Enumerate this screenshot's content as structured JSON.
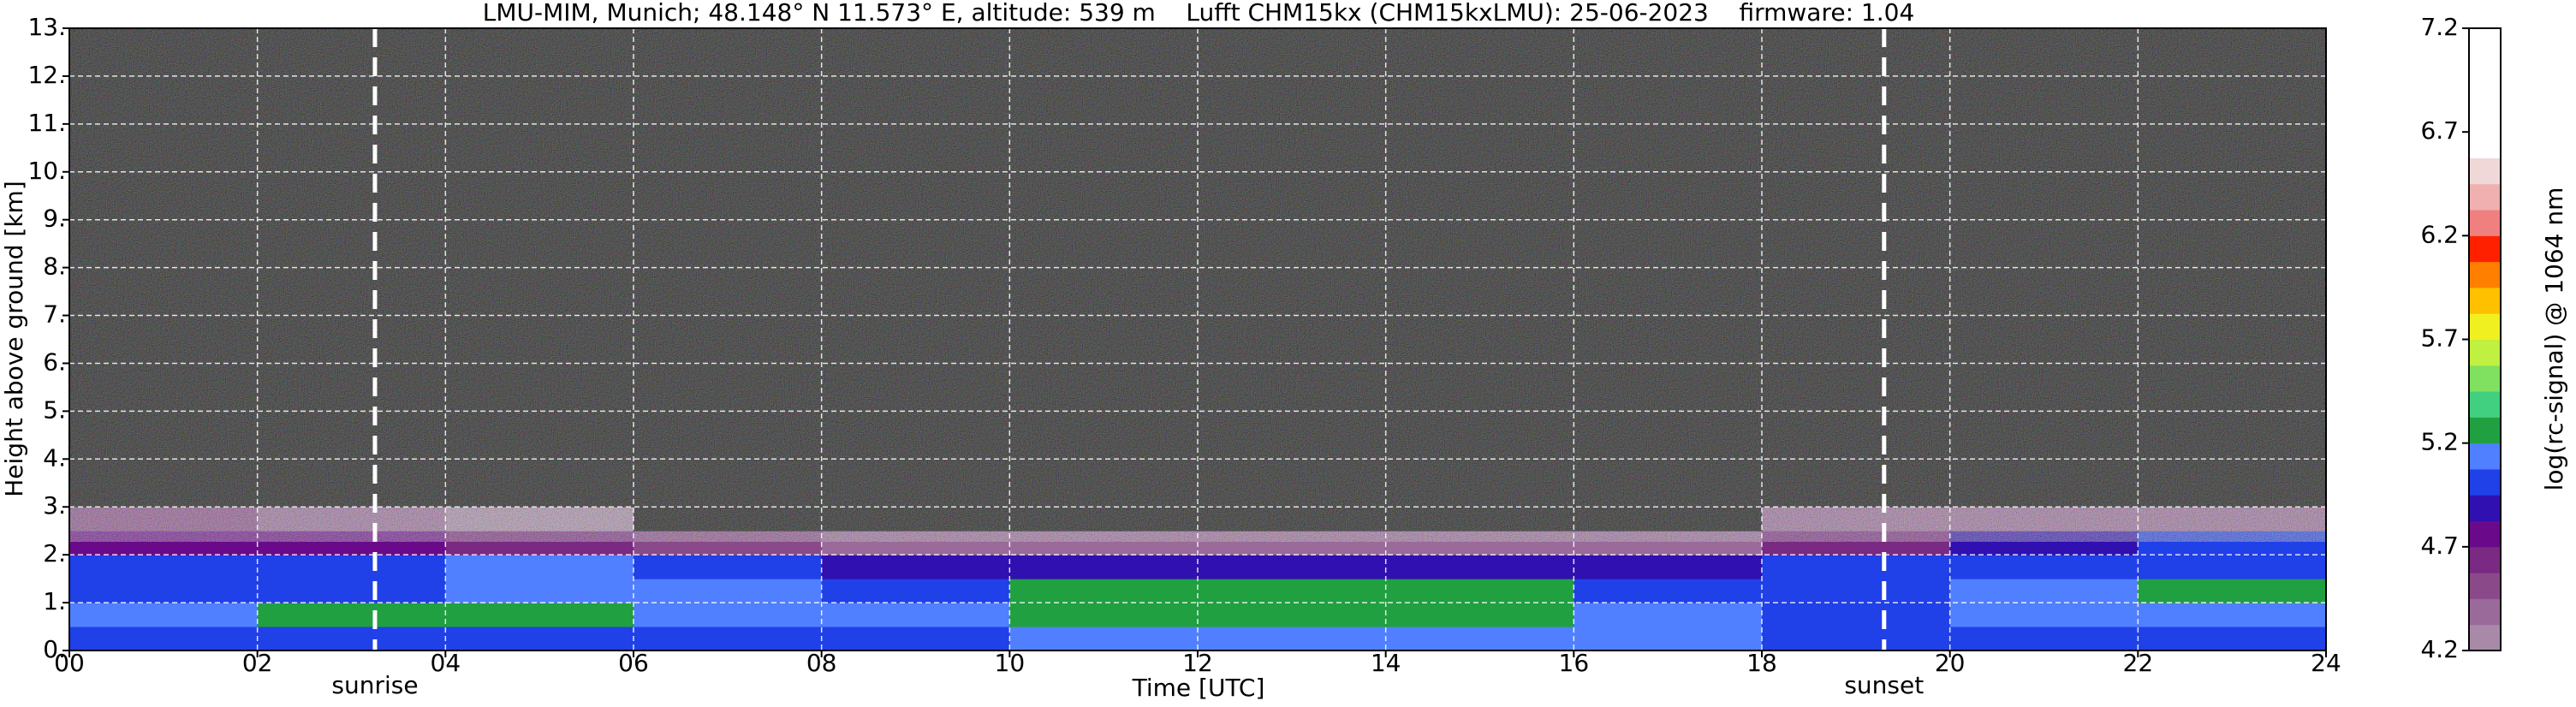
{
  "chart_data": {
    "type": "heatmap",
    "title": "LMU-MIM, Munich; 48.148° N 11.573° E, altitude: 539 m    Lufft CHM15kx (CHM15kxLMU): 25-06-2023    firmware: 1.04",
    "xlabel": "Time [UTC]",
    "ylabel": "Height above ground [km]",
    "colorbar_label": "log(rc-signal) @ 1064 nm",
    "xlim": [
      0,
      24
    ],
    "ylim": [
      0,
      13
    ],
    "xticks": [
      {
        "value": 0,
        "label": "00"
      },
      {
        "value": 2,
        "label": "02"
      },
      {
        "value": 4,
        "label": "04"
      },
      {
        "value": 6,
        "label": "06"
      },
      {
        "value": 8,
        "label": "08"
      },
      {
        "value": 10,
        "label": "10"
      },
      {
        "value": 12,
        "label": "12"
      },
      {
        "value": 14,
        "label": "14"
      },
      {
        "value": 16,
        "label": "16"
      },
      {
        "value": 18,
        "label": "18"
      },
      {
        "value": 20,
        "label": "20"
      },
      {
        "value": 22,
        "label": "22"
      },
      {
        "value": 24,
        "label": "24"
      }
    ],
    "yticks": [
      {
        "value": 0,
        "label": "0."
      },
      {
        "value": 1,
        "label": "1."
      },
      {
        "value": 2,
        "label": "2."
      },
      {
        "value": 3,
        "label": "3."
      },
      {
        "value": 4,
        "label": "4."
      },
      {
        "value": 5,
        "label": "5."
      },
      {
        "value": 6,
        "label": "6."
      },
      {
        "value": 7,
        "label": "7."
      },
      {
        "value": 8,
        "label": "8."
      },
      {
        "value": 9,
        "label": "9."
      },
      {
        "value": 10,
        "label": "10."
      },
      {
        "value": 11,
        "label": "11."
      },
      {
        "value": 12,
        "label": "12."
      },
      {
        "value": 13,
        "label": "13."
      }
    ],
    "grid": true,
    "x_bins": [
      0,
      2,
      4,
      6,
      8,
      10,
      12,
      14,
      16,
      18,
      20,
      22,
      24
    ],
    "y_bins": [
      0,
      0.5,
      1,
      1.5,
      2,
      2.5,
      3,
      4,
      13
    ],
    "values": [
      [
        5.0,
        5.05,
        5.0,
        5.0,
        5.05,
        5.1,
        5.15,
        5.15,
        5.1,
        5.0,
        5.0,
        5.0
      ],
      [
        5.15,
        5.25,
        5.2,
        5.15,
        5.1,
        5.25,
        5.3,
        5.3,
        5.15,
        5.05,
        5.1,
        5.1
      ],
      [
        5.05,
        5.05,
        5.1,
        5.1,
        5.0,
        5.2,
        5.25,
        5.2,
        5.05,
        5.05,
        5.1,
        5.2
      ],
      [
        5.0,
        5.05,
        5.15,
        5.05,
        4.9,
        4.85,
        4.9,
        4.9,
        4.9,
        4.95,
        5.05,
        5.05
      ],
      [
        4.8,
        4.75,
        4.65,
        4.5,
        4.4,
        4.4,
        4.35,
        4.35,
        4.4,
        4.6,
        4.9,
        4.95
      ],
      [
        4.5,
        4.35,
        4.2,
        4.1,
        4.0,
        4.0,
        4.0,
        4.0,
        4.0,
        4.4,
        4.4,
        4.4
      ],
      [
        4.0,
        3.9,
        3.8,
        3.8,
        3.8,
        3.8,
        3.8,
        3.8,
        3.8,
        3.9,
        4.0,
        4.0
      ],
      [
        3.5,
        3.5,
        3.5,
        3.5,
        3.5,
        3.5,
        3.5,
        3.5,
        3.5,
        3.5,
        3.5,
        3.5
      ]
    ],
    "clim": [
      4.2,
      7.2
    ],
    "cticks": [
      4.2,
      4.7,
      5.2,
      5.7,
      6.2,
      6.7,
      7.2
    ],
    "colormap": [
      "#a88aa8",
      "#9a6a9a",
      "#8a4a8a",
      "#7a2a82",
      "#6a0a8a",
      "#3010b0",
      "#2040e8",
      "#5080ff",
      "#20a040",
      "#40d080",
      "#80e060",
      "#c0f040",
      "#f0f020",
      "#ffc000",
      "#ff8000",
      "#ff2000",
      "#f08080",
      "#f0b0b0",
      "#f0d8d8",
      "#ffffff",
      "#ffffff",
      "#ffffff",
      "#ffffff",
      "#ffffff"
    ],
    "under_color": "#000000",
    "annotations": [
      {
        "text": "sunrise",
        "x": 3.25
      },
      {
        "text": "sunset",
        "x": 19.3
      }
    ]
  }
}
